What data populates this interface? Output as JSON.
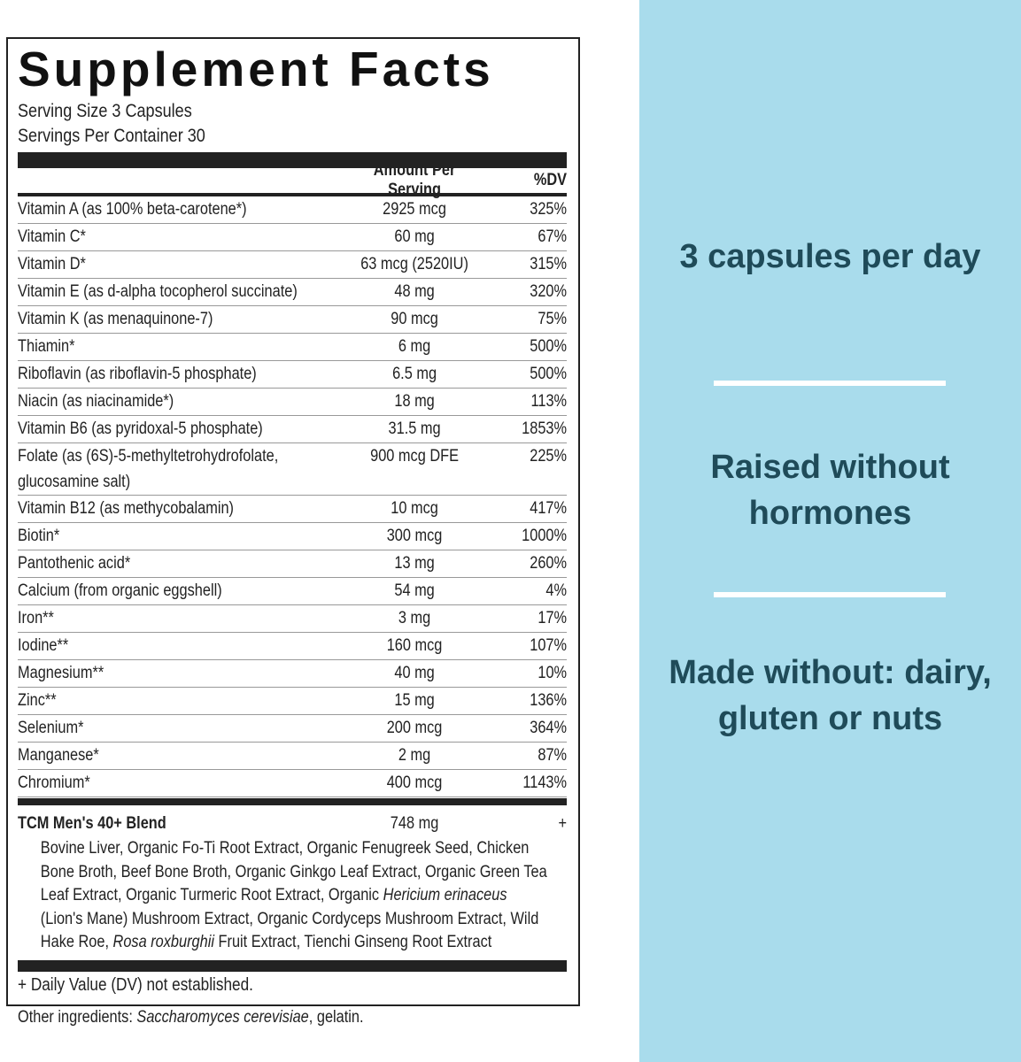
{
  "label": {
    "title": "Supplement Facts",
    "serving_size": "Serving Size 3 Capsules",
    "servings_per_container": "Servings Per Container 30",
    "columns": [
      "Amount Per Serving",
      "%DV"
    ],
    "rows": [
      {
        "name": "Vitamin A (as 100% beta-carotene*)",
        "amount": "2925 mcg",
        "dv": "325%"
      },
      {
        "name": "Vitamin C*",
        "amount": "60 mg",
        "dv": "67%"
      },
      {
        "name": "Vitamin D*",
        "amount": "63 mcg (2520IU)",
        "dv": "315%"
      },
      {
        "name": "Vitamin E (as d-alpha tocopherol succinate)",
        "amount": "48 mg",
        "dv": "320%"
      },
      {
        "name": "Vitamin K (as menaquinone-7)",
        "amount": "90 mcg",
        "dv": "75%"
      },
      {
        "name": "Thiamin*",
        "amount": "6 mg",
        "dv": "500%"
      },
      {
        "name": "Riboflavin (as riboflavin-5 phosphate)",
        "amount": "6.5 mg",
        "dv": "500%"
      },
      {
        "name": "Niacin (as niacinamide*)",
        "amount": "18 mg",
        "dv": "113%"
      },
      {
        "name": "Vitamin B6 (as pyridoxal-5 phosphate)",
        "amount": "31.5 mg",
        "dv": "1853%"
      },
      {
        "name": "Folate (as (6S)-5-methyltetrohydrofolate, glucosamine salt)",
        "amount": "900 mcg DFE",
        "dv": "225%"
      },
      {
        "name": "Vitamin B12 (as methycobalamin)",
        "amount": "10 mcg",
        "dv": "417%"
      },
      {
        "name": "Biotin*",
        "amount": "300 mcg",
        "dv": "1000%"
      },
      {
        "name": "Pantothenic acid*",
        "amount": "13 mg",
        "dv": "260%"
      },
      {
        "name": "Calcium (from organic eggshell)",
        "amount": "54 mg",
        "dv": "4%"
      },
      {
        "name": "Iron**",
        "amount": "3 mg",
        "dv": "17%"
      },
      {
        "name": "Iodine**",
        "amount": "160 mcg",
        "dv": "107%"
      },
      {
        "name": "Magnesium**",
        "amount": "40 mg",
        "dv": "10%"
      },
      {
        "name": "Zinc**",
        "amount": "15 mg",
        "dv": "136%"
      },
      {
        "name": "Selenium*",
        "amount": "200 mcg",
        "dv": "364%"
      },
      {
        "name": "Manganese*",
        "amount": "2 mg",
        "dv": "87%"
      },
      {
        "name": "Chromium*",
        "amount": "400 mcg",
        "dv": "1143%"
      }
    ],
    "blend": {
      "name": "TCM Men's 40+ Blend",
      "amount": "748 mg",
      "dv": "+",
      "ingredients": [
        {
          "text": "Bovine Liver, Organic Fo-Ti Root Extract, Organic Fenugreek Seed, Chicken Bone Broth, Beef Bone Broth, Organic Ginkgo Leaf Extract, Organic Green Tea Leaf Extract, Organic Turmeric Root Extract, Organic "
        },
        {
          "text": "Hericium erinaceus",
          "italic": true
        },
        {
          "text": " (Lion's Mane) Mushroom Extract, Organic Cordyceps Mushroom Extract, Wild Hake Roe, "
        },
        {
          "text": "Rosa roxburghii",
          "italic": true
        },
        {
          "text": " Fruit Extract, Tienchi Ginseng Root Extract"
        }
      ]
    },
    "footnote": "+ Daily Value (DV) not established.",
    "other_ingredients": [
      {
        "text": "Other ingredients: "
      },
      {
        "text": "Saccharomyces cerevisiae",
        "italic": true
      },
      {
        "text": ", gelatin."
      }
    ]
  },
  "claims": [
    "3 capsules per day",
    "Raised without hormones",
    "Made without: dairy, gluten or nuts"
  ]
}
